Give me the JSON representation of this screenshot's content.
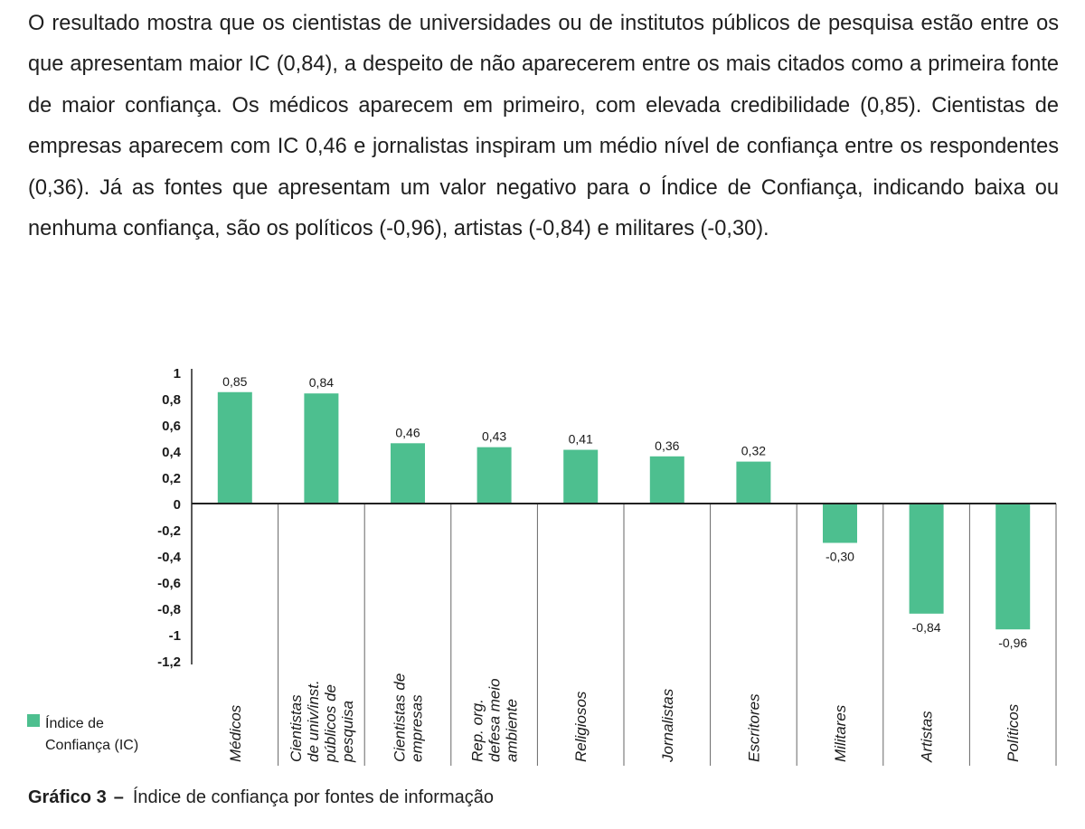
{
  "paragraph": {
    "lines": [
      "O resultado mostra que os cientistas de universidades ou de institutos públicos de pesquisa estão",
      "entre os que apresentam maior IC (0,84), a despeito de não aparecerem entre os mais citados como",
      "a primeira fonte de maior confiança. Os médicos aparecem em primeiro, com elevada credibilidade",
      "(0,85). Cientistas de empresas aparecem com IC 0,46 e jornalistas inspiram um médio nível de",
      "confiança entre os respondentes (0,36). Já as fontes que apresentam um valor negativo para o Índice",
      "de Confiança, indicando baixa ou nenhuma confiança, são os políticos (-0,96), artistas (-0,84) e",
      "militares (-0,30)."
    ]
  },
  "caption": {
    "label": "Gráfico 3",
    "dash": "–",
    "text": "Índice de confiança por fontes de informação"
  },
  "chart_data": {
    "type": "bar",
    "title": "",
    "xlabel": "",
    "ylabel": "",
    "ylim": [
      -1.2,
      1
    ],
    "yticks": [
      1,
      0.8,
      0.6,
      0.4,
      0.2,
      0,
      -0.2,
      -0.4,
      -0.6,
      -0.8,
      -1,
      -1.2
    ],
    "ytick_labels": [
      "1",
      "0,8",
      "0,6",
      "0,4",
      "0,2",
      "0",
      "-0,2",
      "-0,4",
      "-0,6",
      "-0,8",
      "-1",
      "-1,2"
    ],
    "categories": [
      [
        "Médicos"
      ],
      [
        "Cientistas",
        "de univ/inst.",
        "públicos de",
        "pesquisa"
      ],
      [
        "Cientistas de",
        "empresas"
      ],
      [
        "Rep. org.",
        "defesa meio",
        "ambiente"
      ],
      [
        "Religiosos"
      ],
      [
        "Jornalistas"
      ],
      [
        "Escritores"
      ],
      [
        "Militares"
      ],
      [
        "Artistas"
      ],
      [
        "Políticos"
      ]
    ],
    "values": [
      0.85,
      0.84,
      0.46,
      0.43,
      0.41,
      0.36,
      0.32,
      -0.3,
      -0.84,
      -0.96
    ],
    "value_labels": [
      "0,85",
      "0,84",
      "0,46",
      "0,43",
      "0,41",
      "0,36",
      "0,32",
      "-0,30",
      "-0,84",
      "-0,96"
    ],
    "legend": {
      "label_lines": [
        "Índice de",
        "Confiança (IC)"
      ],
      "position": "bottom-left"
    },
    "color": "#4dbf8f"
  }
}
